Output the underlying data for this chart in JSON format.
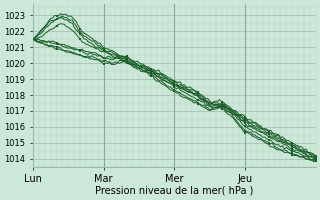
{
  "bg_color": "#cce8d8",
  "grid_color_major": "#aabfb5",
  "grid_color_minor": "#bbcfc5",
  "line_color": "#1a5e28",
  "ylabel_text": "Pression niveau de la mer( hPa )",
  "x_tick_labels": [
    "Lun",
    "Mar",
    "Mer",
    "Jeu"
  ],
  "ylim": [
    1013.5,
    1023.7
  ],
  "yticks": [
    1014,
    1015,
    1016,
    1017,
    1018,
    1019,
    1020,
    1021,
    1022,
    1023
  ],
  "num_points": 145,
  "days": 4
}
